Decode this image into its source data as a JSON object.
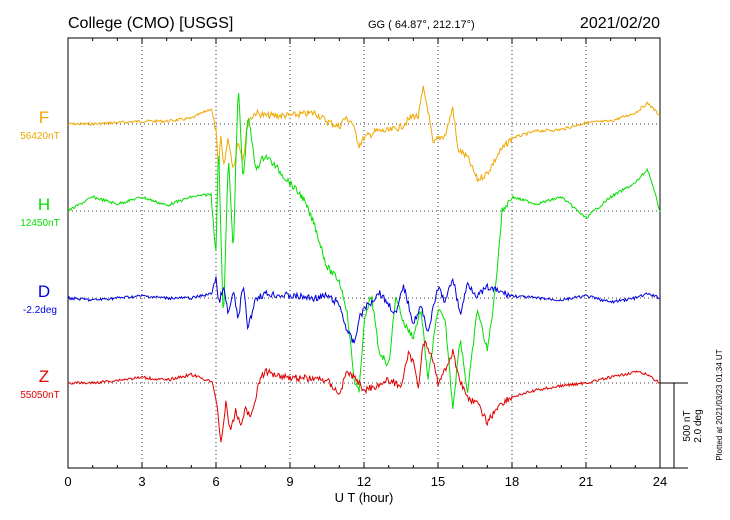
{
  "header": {
    "station": "College (CMO)  [USGS]",
    "coords": "GG ( 64.87°, 212.17°)",
    "date": "2021/02/20"
  },
  "footer": {
    "plotted": "Plotted at 2021/03/23 01:34  UT",
    "scale_nt": "500 nT",
    "scale_deg": "2.0 deg"
  },
  "chart_data": {
    "type": "line",
    "xlabel": "U T (hour)",
    "xlim": [
      0,
      24
    ],
    "xticks": [
      0,
      3,
      6,
      9,
      12,
      15,
      18,
      21,
      24
    ],
    "grid": true,
    "series": [
      {
        "name": "F",
        "baseline_label": "56420nT",
        "color": "#f0a800",
        "x": [
          0,
          1,
          2,
          3,
          4,
          5,
          5.8,
          6.0,
          6.1,
          6.2,
          6.3,
          6.5,
          6.7,
          6.9,
          7.1,
          7.3,
          7.6,
          8.0,
          9,
          10,
          10.5,
          11,
          11.2,
          11.5,
          11.8,
          12,
          12.5,
          13,
          13.5,
          14,
          14.2,
          14.4,
          14.6,
          14.8,
          15,
          15.3,
          15.6,
          15.8,
          16.2,
          16.6,
          17,
          17.5,
          18,
          19,
          20,
          21,
          22,
          23,
          23.5,
          24
        ],
        "y": [
          0,
          0,
          10,
          20,
          20,
          40,
          110,
          -50,
          -350,
          -80,
          -300,
          -100,
          -320,
          -120,
          -250,
          20,
          80,
          60,
          60,
          80,
          20,
          -20,
          40,
          20,
          -150,
          -100,
          -50,
          -50,
          -20,
          60,
          50,
          250,
          100,
          -150,
          -100,
          -80,
          120,
          -180,
          -240,
          -400,
          -350,
          -200,
          -100,
          -50,
          -40,
          10,
          20,
          80,
          150,
          60
        ]
      },
      {
        "name": "H",
        "baseline_label": "12450nT",
        "color": "#00e000",
        "x": [
          0,
          1,
          2,
          3,
          4,
          5,
          5.8,
          6.0,
          6.1,
          6.3,
          6.5,
          6.7,
          6.9,
          7.1,
          7.3,
          7.6,
          8.0,
          8.5,
          9,
          9.5,
          10,
          10.5,
          11,
          11.3,
          11.6,
          11.8,
          12,
          12.3,
          12.6,
          13,
          13.3,
          13.6,
          14,
          14.3,
          14.6,
          15,
          15.3,
          15.6,
          15.9,
          16.2,
          16.6,
          17,
          17.3,
          17.6,
          18,
          19,
          20,
          21,
          22,
          23,
          23.5,
          24
        ],
        "y": [
          0,
          100,
          50,
          100,
          40,
          100,
          120,
          -300,
          500,
          -800,
          400,
          -300,
          900,
          200,
          700,
          300,
          400,
          300,
          200,
          100,
          -100,
          -400,
          -500,
          -700,
          -1200,
          -1300,
          -800,
          -600,
          -1000,
          -1100,
          -600,
          -800,
          -900,
          -700,
          -1200,
          -700,
          -800,
          -1400,
          -900,
          -1300,
          -700,
          -1000,
          -600,
          0,
          100,
          50,
          100,
          -50,
          100,
          200,
          300,
          0
        ]
      },
      {
        "name": "D",
        "baseline_label": "-2.2deg",
        "color": "#0000e0",
        "x": [
          0,
          1,
          2,
          3,
          4,
          5,
          5.8,
          6.0,
          6.1,
          6.3,
          6.5,
          6.7,
          6.9,
          7.1,
          7.3,
          7.6,
          8,
          9,
          10,
          10.5,
          11,
          11.3,
          11.6,
          11.8,
          12,
          12.3,
          12.6,
          13,
          13.3,
          13.6,
          14,
          14.3,
          14.6,
          15,
          15.3,
          15.6,
          15.9,
          16.2,
          16.6,
          17,
          17.5,
          18,
          19,
          20,
          21,
          22,
          23,
          23.5,
          24
        ],
        "y": [
          0,
          -0.1,
          0,
          0.1,
          0,
          0,
          0.2,
          1.0,
          -0.3,
          0.5,
          -0.8,
          0.3,
          -1.0,
          0.6,
          -1.5,
          0,
          0.2,
          0.1,
          0,
          0.1,
          -0.3,
          -1.5,
          -2.2,
          -1.0,
          -0.5,
          -0.2,
          0.3,
          -0.3,
          -0.8,
          0.6,
          -1.2,
          -0.4,
          -1.6,
          0.5,
          -0.2,
          1.0,
          -0.8,
          0.7,
          0.1,
          0.5,
          0.3,
          0.1,
          0,
          -0.1,
          0.1,
          -0.2,
          0,
          0.2,
          0
        ]
      },
      {
        "name": "Z",
        "baseline_label": "55050nT",
        "color": "#e00000",
        "x": [
          0,
          1,
          2,
          3,
          4,
          5,
          5.8,
          6.0,
          6.2,
          6.4,
          6.6,
          6.8,
          7.0,
          7.2,
          7.4,
          7.8,
          8,
          9,
          10,
          10.5,
          11,
          11.3,
          11.6,
          12,
          12.5,
          13,
          13.5,
          13.8,
          14,
          14.2,
          14.4,
          14.6,
          14.8,
          15,
          15.3,
          15.6,
          15.8,
          16,
          16.2,
          16.6,
          17,
          17.5,
          18,
          19,
          20,
          21,
          22,
          23,
          23.5,
          24
        ],
        "y": [
          0,
          0,
          20,
          40,
          20,
          60,
          10,
          -100,
          -420,
          -150,
          -350,
          -200,
          -300,
          -180,
          -250,
          40,
          80,
          40,
          30,
          20,
          -80,
          80,
          40,
          -50,
          -20,
          20,
          -20,
          200,
          150,
          -30,
          300,
          250,
          150,
          0,
          100,
          220,
          80,
          -30,
          -100,
          -150,
          -280,
          -150,
          -100,
          -50,
          -20,
          0,
          40,
          80,
          60,
          0
        ]
      }
    ]
  }
}
